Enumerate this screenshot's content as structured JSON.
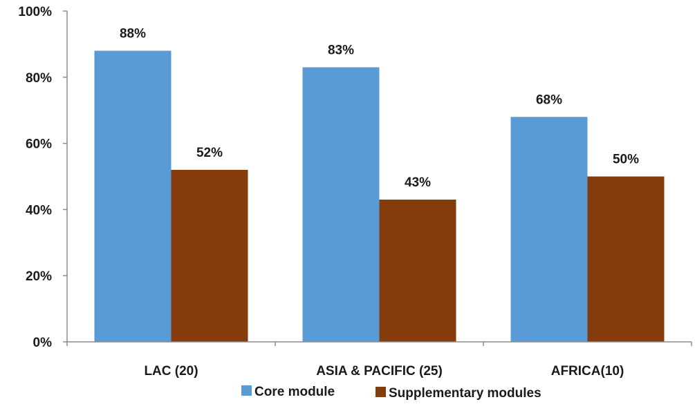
{
  "chart_data": {
    "type": "bar",
    "title": "",
    "xlabel": "",
    "ylabel": "",
    "categories": [
      "LAC (20)",
      "ASIA & PACIFIC (25)",
      "AFRICA(10)"
    ],
    "series": [
      {
        "name": "Core module",
        "values": [
          88,
          83,
          68
        ],
        "labels": [
          "88%",
          "83%",
          "68%"
        ],
        "color": "#5B9BD5"
      },
      {
        "name": "Supplementary modules",
        "values": [
          52,
          43,
          50
        ],
        "labels": [
          "52%",
          "43%",
          "50%"
        ],
        "color": "#843C0C"
      }
    ],
    "ylim": [
      0,
      100
    ],
    "yticks": [
      0,
      20,
      40,
      60,
      80,
      100
    ],
    "ytick_labels": [
      "0%",
      "20%",
      "40%",
      "60%",
      "80%",
      "100%"
    ],
    "grid": false,
    "legend": "bottom"
  }
}
